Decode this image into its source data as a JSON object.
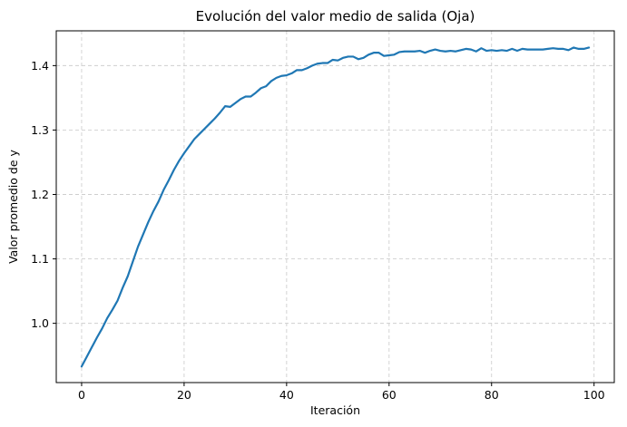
{
  "chart_data": {
    "type": "line",
    "title": "Evolución del valor medio de salida (Oja)",
    "xlabel": "Iteración",
    "ylabel": "Valor promedio de y",
    "xlim": [
      -4.95,
      103.95
    ],
    "ylim": [
      0.908,
      1.454
    ],
    "xticks": [
      0,
      20,
      40,
      60,
      80,
      100
    ],
    "yticks": [
      1.0,
      1.1,
      1.2,
      1.3,
      1.4
    ],
    "xtick_labels": [
      "0",
      "20",
      "40",
      "60",
      "80",
      "100"
    ],
    "ytick_labels": [
      "1.0",
      "1.1",
      "1.2",
      "1.3",
      "1.4"
    ],
    "grid": true,
    "line_color": "#1f77b4",
    "series": [
      {
        "x": [
          0,
          1,
          2,
          3,
          4,
          5,
          6,
          7,
          8,
          9,
          10,
          11,
          12,
          13,
          14,
          15,
          16,
          17,
          18,
          19,
          20,
          21,
          22,
          23,
          24,
          25,
          26,
          27,
          28,
          29,
          30,
          31,
          32,
          33,
          34,
          35,
          36,
          37,
          38,
          39,
          40,
          41,
          42,
          43,
          44,
          45,
          46,
          47,
          48,
          49,
          50,
          51,
          52,
          53,
          54,
          55,
          56,
          57,
          58,
          59,
          60,
          61,
          62,
          63,
          64,
          65,
          66,
          67,
          68,
          69,
          70,
          71,
          72,
          73,
          74,
          75,
          76,
          77,
          78,
          79,
          80,
          81,
          82,
          83,
          84,
          85,
          86,
          87,
          88,
          89,
          90,
          91,
          92,
          93,
          94,
          95,
          96,
          97,
          98,
          99
        ],
        "values": [
          0.933,
          0.948,
          0.963,
          0.978,
          0.992,
          1.008,
          1.021,
          1.035,
          1.055,
          1.073,
          1.096,
          1.119,
          1.138,
          1.157,
          1.174,
          1.189,
          1.207,
          1.222,
          1.238,
          1.252,
          1.264,
          1.275,
          1.286,
          1.294,
          1.302,
          1.31,
          1.318,
          1.327,
          1.337,
          1.336,
          1.342,
          1.348,
          1.352,
          1.352,
          1.358,
          1.365,
          1.368,
          1.376,
          1.381,
          1.384,
          1.385,
          1.388,
          1.393,
          1.393,
          1.396,
          1.4,
          1.403,
          1.404,
          1.404,
          1.409,
          1.408,
          1.412,
          1.414,
          1.414,
          1.41,
          1.412,
          1.417,
          1.42,
          1.42,
          1.415,
          1.416,
          1.417,
          1.421,
          1.422,
          1.422,
          1.422,
          1.423,
          1.42,
          1.423,
          1.425,
          1.423,
          1.422,
          1.423,
          1.422,
          1.424,
          1.426,
          1.425,
          1.422,
          1.427,
          1.423,
          1.424,
          1.423,
          1.424,
          1.423,
          1.426,
          1.423,
          1.426,
          1.425,
          1.425,
          1.425,
          1.425,
          1.426,
          1.427,
          1.426,
          1.426,
          1.424,
          1.428,
          1.426,
          1.426,
          1.428
        ]
      }
    ]
  }
}
